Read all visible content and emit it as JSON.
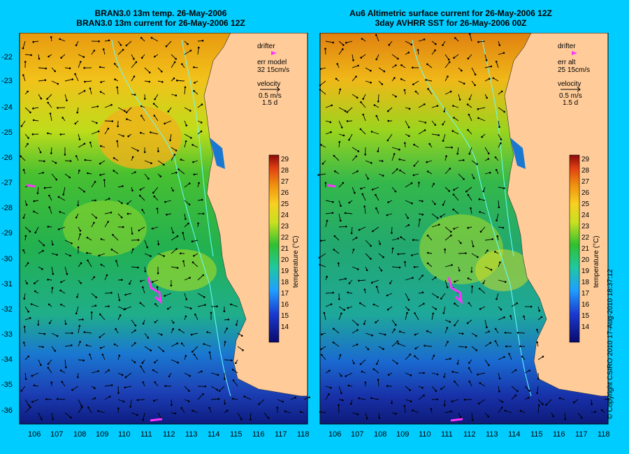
{
  "left_panel": {
    "title_line1": "BRAN3.0 13m temp. 26-May-2006",
    "title_line2": "BRAN3.0 13m current for 26-May-2006 12Z",
    "legend": {
      "drifter": "drifter",
      "err_label": "err model",
      "err_value": "32 15cm/s",
      "velocity": "velocity",
      "speed": "0.5 m/s",
      "duration": "1.5 d"
    }
  },
  "right_panel": {
    "title_line1": "Au6 Altimetric surface current for 26-May-2006 12Z",
    "title_line2": "3day AVHRR SST for 26-May-2006 00Z",
    "legend": {
      "drifter": "drifter",
      "err_label": "err alt",
      "err_value": "25 15cm/s",
      "velocity": "velocity",
      "speed": "0.5 m/s",
      "duration": "1.5 d"
    }
  },
  "axes": {
    "lon_ticks": [
      "106",
      "107",
      "108",
      "109",
      "110",
      "111",
      "112",
      "113",
      "114",
      "115",
      "116",
      "117",
      "118"
    ],
    "lat_ticks": [
      "-22",
      "-23",
      "-24",
      "-25",
      "-26",
      "-27",
      "-28",
      "-29",
      "-30",
      "-31",
      "-32",
      "-33",
      "-34",
      "-35",
      "-36"
    ]
  },
  "colorbar": {
    "title": "temperature (°C)",
    "ticks": [
      "29",
      "28",
      "27",
      "26",
      "25",
      "24",
      "23",
      "22",
      "21",
      "20",
      "19",
      "18",
      "17",
      "16",
      "15",
      "14"
    ]
  },
  "copyright": "© Copyright CSIRO 2010   17-Aug-2010 18:37:12",
  "colors": {
    "background": "#00ccff",
    "land": "#ffcc99",
    "drifter": "#ff33ff",
    "isobath": "#66ffff"
  }
}
